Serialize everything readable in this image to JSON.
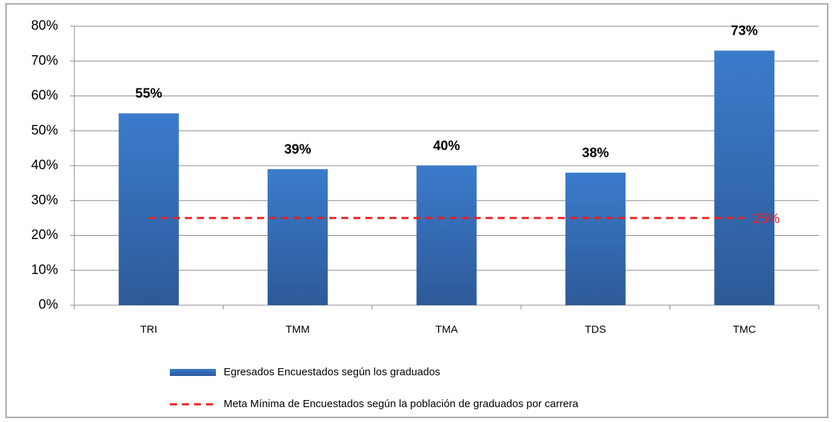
{
  "chart_data": {
    "type": "bar",
    "categories": [
      "TRI",
      "TMM",
      "TMA",
      "TDS",
      "TMC"
    ],
    "series": [
      {
        "name": "Egresados Encuestados según los graduados",
        "type": "bar",
        "color": "#3b7bcc",
        "values": [
          55,
          39,
          40,
          38,
          73
        ],
        "value_labels": [
          "55%",
          "39%",
          "40%",
          "38%",
          "73%"
        ]
      },
      {
        "name": "Meta Mínima de Encuestados según la población de graduados por carrera",
        "type": "line",
        "color": "#e82020",
        "values": [
          25,
          25,
          25,
          25,
          25
        ],
        "value_labels": [
          null,
          null,
          null,
          null,
          "25%"
        ]
      }
    ],
    "ylim": [
      0,
      80
    ],
    "yticks": [
      {
        "value": 0,
        "label": "0%"
      },
      {
        "value": 10,
        "label": "10%"
      },
      {
        "value": 20,
        "label": "20%"
      },
      {
        "value": 30,
        "label": "30%"
      },
      {
        "value": 40,
        "label": "40%"
      },
      {
        "value": 50,
        "label": "50%"
      },
      {
        "value": 60,
        "label": "60%"
      },
      {
        "value": 70,
        "label": "70%"
      },
      {
        "value": 80,
        "label": "80%"
      }
    ],
    "grid": true,
    "legend": "bottom"
  }
}
